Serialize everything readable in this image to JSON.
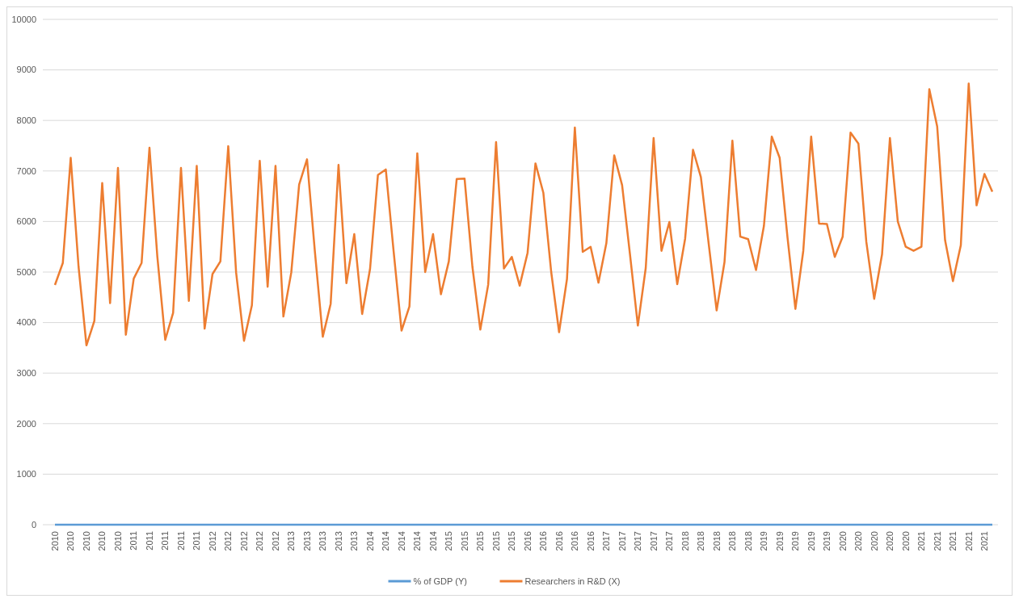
{
  "chart_data": {
    "type": "line",
    "categories": [
      "2010",
      null,
      "2010",
      null,
      "2010",
      null,
      "2010",
      null,
      "2010",
      null,
      "2011",
      null,
      "2011",
      null,
      "2011",
      null,
      "2011",
      null,
      "2011",
      null,
      "2012",
      null,
      "2012",
      null,
      "2012",
      null,
      "2012",
      null,
      "2012",
      null,
      "2013",
      null,
      "2013",
      null,
      "2013",
      null,
      "2013",
      null,
      "2013",
      null,
      "2014",
      null,
      "2014",
      null,
      "2014",
      null,
      "2014",
      null,
      "2014",
      null,
      "2015",
      null,
      "2015",
      null,
      "2015",
      null,
      "2015",
      null,
      "2015",
      null,
      "2016",
      null,
      "2016",
      null,
      "2016",
      null,
      "2016",
      null,
      "2016",
      null,
      "2017",
      null,
      "2017",
      null,
      "2017",
      null,
      "2017",
      null,
      "2017",
      null,
      "2018",
      null,
      "2018",
      null,
      "2018",
      null,
      "2018",
      null,
      "2018",
      null,
      "2019",
      null,
      "2019",
      null,
      "2019",
      null,
      "2019",
      null,
      "2019",
      null,
      "2020",
      null,
      "2020",
      null,
      "2020",
      null,
      "2020",
      null,
      "2020",
      null,
      "2021",
      null,
      "2021",
      null,
      "2021",
      null,
      "2021",
      null,
      "2021",
      null
    ],
    "series": [
      {
        "name": "% of GDP (Y)",
        "color": "#5b9bd5",
        "values": [
          0,
          0,
          0,
          0,
          0,
          0,
          0,
          0,
          0,
          0,
          0,
          0,
          0,
          0,
          0,
          0,
          0,
          0,
          0,
          0,
          0,
          0,
          0,
          0,
          0,
          0,
          0,
          0,
          0,
          0,
          0,
          0,
          0,
          0,
          0,
          0,
          0,
          0,
          0,
          0,
          0,
          0,
          0,
          0,
          0,
          0,
          0,
          0,
          0,
          0,
          0,
          0,
          0,
          0,
          0,
          0,
          0,
          0,
          0,
          0,
          0,
          0,
          0,
          0,
          0,
          0,
          0,
          0,
          0,
          0,
          0,
          0,
          0,
          0,
          0,
          0,
          0,
          0,
          0,
          0,
          0,
          0,
          0,
          0,
          0,
          0,
          0,
          0,
          0,
          0,
          0,
          0,
          0,
          0,
          0,
          0,
          0,
          0,
          0,
          0,
          0,
          0,
          0,
          0,
          0,
          0,
          0,
          0,
          0,
          0,
          0,
          0,
          0,
          0,
          0,
          0,
          0,
          0,
          0,
          0
        ]
      },
      {
        "name": "Researchers in R&D (X)",
        "color": "#ed7d31",
        "values": [
          4745,
          5180,
          7260,
          5100,
          3550,
          4030,
          6760,
          4385,
          7060,
          3760,
          4870,
          5180,
          7460,
          5300,
          3660,
          4190,
          7060,
          4430,
          7100,
          3880,
          4960,
          5210,
          7490,
          4990,
          3640,
          4340,
          7200,
          4710,
          7100,
          4120,
          4990,
          6730,
          7230,
          5400,
          3720,
          4370,
          7120,
          4780,
          5750,
          4170,
          5060,
          6920,
          7030,
          5400,
          3840,
          4320,
          7350,
          5000,
          5750,
          4560,
          5210,
          6840,
          6850,
          5100,
          3860,
          4750,
          7570,
          5070,
          5300,
          4730,
          5380,
          7150,
          6570,
          5000,
          3810,
          4860,
          7860,
          5400,
          5500,
          4790,
          5570,
          7310,
          6720,
          5350,
          3940,
          5080,
          7650,
          5420,
          5990,
          4760,
          5660,
          7420,
          6880,
          5550,
          4240,
          5200,
          7600,
          5700,
          5650,
          5040,
          5910,
          7680,
          7260,
          5680,
          4270,
          5420,
          7680,
          5960,
          5950,
          5300,
          5700,
          7760,
          7540,
          5600,
          4470,
          5350,
          7650,
          6000,
          5500,
          5420,
          5500,
          8620,
          7880,
          5630,
          4820,
          5530,
          8730,
          6320,
          6940,
          6590
        ]
      }
    ],
    "ylim": [
      0,
      10000
    ],
    "yticks": [
      0,
      1000,
      2000,
      3000,
      4000,
      5000,
      6000,
      7000,
      8000,
      9000,
      10000
    ],
    "grid": "y",
    "legend": "bottom"
  }
}
